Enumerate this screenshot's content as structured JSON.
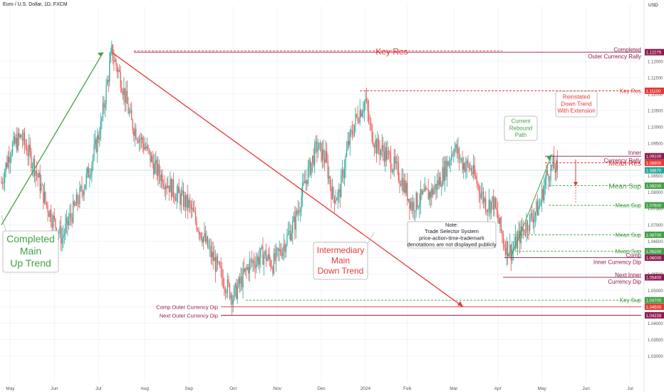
{
  "header": {
    "symbol_title": "Euro / U.S. Dollar, 1D, FXCM",
    "currency": "USD"
  },
  "colors": {
    "up": "#26a69a",
    "down": "#ef5350",
    "green": "#43a047",
    "red": "#e53935",
    "maroon": "#8e1b4f",
    "grid": "#f0f3fa",
    "axis_text": "#555555"
  },
  "chart_data": {
    "type": "candlestick",
    "title": "Euro / U.S. Dollar, 1D, FXCM",
    "ylim": [
      1.022,
      1.137
    ],
    "y_ticks": [
      1.03,
      1.035,
      1.04,
      1.045,
      1.05,
      1.055,
      1.06,
      1.065,
      1.07,
      1.075,
      1.08,
      1.085,
      1.09,
      1.095,
      1.1,
      1.105,
      1.11,
      1.115,
      1.12
    ],
    "x_labels": [
      "May",
      "Jun",
      "Jul",
      "Aug",
      "Sep",
      "Oct",
      "Nov",
      "Dec",
      "2024",
      "Feb",
      "Mar",
      "Apr",
      "May",
      "Jun",
      "Jul"
    ],
    "x_label_idx": [
      8,
      48,
      88,
      130,
      170,
      210,
      250,
      290,
      330,
      368,
      410,
      450,
      490,
      530,
      570
    ],
    "last_price": 1.0867,
    "price_path": [
      [
        0,
        1.083
      ],
      [
        8,
        1.093
      ],
      [
        18,
        1.097
      ],
      [
        30,
        1.088
      ],
      [
        40,
        1.077
      ],
      [
        50,
        1.069
      ],
      [
        55,
        1.066
      ],
      [
        62,
        1.072
      ],
      [
        70,
        1.078
      ],
      [
        80,
        1.087
      ],
      [
        90,
        1.1
      ],
      [
        100,
        1.12275
      ],
      [
        108,
        1.115
      ],
      [
        118,
        1.101
      ],
      [
        130,
        1.094
      ],
      [
        140,
        1.087
      ],
      [
        150,
        1.083
      ],
      [
        160,
        1.079
      ],
      [
        170,
        1.076
      ],
      [
        178,
        1.07
      ],
      [
        190,
        1.061
      ],
      [
        200,
        1.054
      ],
      [
        210,
        1.048
      ],
      [
        216,
        1.052
      ],
      [
        225,
        1.058
      ],
      [
        238,
        1.061
      ],
      [
        246,
        1.058
      ],
      [
        256,
        1.064
      ],
      [
        266,
        1.071
      ],
      [
        276,
        1.084
      ],
      [
        286,
        1.094
      ],
      [
        294,
        1.09
      ],
      [
        300,
        1.079
      ],
      [
        306,
        1.079
      ],
      [
        314,
        1.094
      ],
      [
        322,
        1.103
      ],
      [
        330,
        1.108
      ],
      [
        334,
        1.1
      ],
      [
        340,
        1.094
      ],
      [
        348,
        1.092
      ],
      [
        356,
        1.088
      ],
      [
        364,
        1.083
      ],
      [
        372,
        1.076
      ],
      [
        380,
        1.078
      ],
      [
        390,
        1.08
      ],
      [
        398,
        1.084
      ],
      [
        406,
        1.09
      ],
      [
        410,
        1.094
      ],
      [
        418,
        1.089
      ],
      [
        426,
        1.087
      ],
      [
        432,
        1.082
      ],
      [
        440,
        1.076
      ],
      [
        446,
        1.077
      ],
      [
        450,
        1.072
      ],
      [
        456,
        1.064
      ],
      [
        462,
        1.062
      ],
      [
        466,
        1.064
      ],
      [
        472,
        1.068
      ],
      [
        480,
        1.072
      ],
      [
        488,
        1.076
      ],
      [
        494,
        1.085
      ],
      [
        500,
        1.088
      ],
      [
        504,
        1.0867
      ]
    ],
    "levels": [
      {
        "label": "Key Res",
        "value": 1.1232,
        "color": "#e53935",
        "badge": "",
        "dashed": true
      },
      {
        "label": "Completed Outer Currency Rally",
        "value": 1.1228,
        "color": "#8e1b4f",
        "badge": "1.12275",
        "dashed": false
      },
      {
        "label": "Key Res",
        "value": 1.111,
        "color": "#e53935",
        "badge": "1.11100",
        "dashed": true
      },
      {
        "label": "Inner Currency Rally",
        "value": 1.091,
        "color": "#8e1b4f",
        "badge": "1.09100",
        "dashed": false
      },
      {
        "label": "Mean Res",
        "value": 1.089,
        "color": "#e53935",
        "badge": "1.08900",
        "dashed": true
      },
      {
        "label": "",
        "value": 1.0867,
        "color": "#26a69a",
        "badge": "1.08670",
        "dashed": false
      },
      {
        "label": "Mean Sup",
        "value": 1.082,
        "color": "#43a047",
        "badge": "1.08200",
        "dashed": true
      },
      {
        "label": "Mean Sup",
        "value": 1.076,
        "color": "#43a047",
        "badge": "1.07600",
        "dashed": true
      },
      {
        "label": "Mean Sup",
        "value": 1.067,
        "color": "#43a047",
        "badge": "1.06700",
        "dashed": true
      },
      {
        "label": "Mean Sup",
        "value": 1.062,
        "color": "#43a047",
        "badge": "1.06200",
        "dashed": true
      },
      {
        "label": "Comp Inner Currency Dip",
        "value": 1.06,
        "color": "#8e1b4f",
        "badge": "1.06000",
        "dashed": false
      },
      {
        "label": "Next Inner Currency Dip",
        "value": 1.054,
        "color": "#8e1b4f",
        "badge": "1.05400",
        "dashed": false
      },
      {
        "label": "Key Sup",
        "value": 1.047,
        "color": "#43a047",
        "badge": "1.04700",
        "dashed": true
      },
      {
        "label": "Comp Outer Currency Dip",
        "value": 1.045,
        "color": "#e53935",
        "badge": "1.04500",
        "dashed": false
      },
      {
        "label": "Next Outer Currency Dip",
        "value": 1.04239,
        "color": "#8e1b4f",
        "badge": "1.04239",
        "dashed": false
      }
    ],
    "annotations": [
      {
        "text": "Completed Main Up Trend",
        "color": "#43a047"
      },
      {
        "text": "Intermediary Main Down Trend",
        "color": "#e53935"
      },
      {
        "text": "Current Rebound Path",
        "color": "#43a047"
      },
      {
        "text": "Reinstated Down Trend With Extension",
        "color": "#e53935"
      },
      {
        "text": "Note: Trade Selector System price-action-time-trademark denotations are not displayed publicly",
        "color": "#131722"
      }
    ]
  },
  "labels": {
    "key_res_top": "Key Res",
    "completed_1": "Completed",
    "completed_2": "Outer Currency Rally",
    "key_res": "Key Res",
    "inner_1": "Inner",
    "inner_2": "Currency Rally",
    "mean_res": "Mean Res",
    "mean_sup_big": "Mean Sup",
    "mean_sup": "Mean Sup",
    "comp_1": "Comp",
    "comp_2": "Inner Currency Dip",
    "next_inner_1": "Next Inner",
    "next_inner_2": "Currency Dip",
    "key_sup": "Key Sup",
    "comp_outer": "Comp Outer Currency Dip",
    "next_outer": "Next Outer Currency Dip",
    "up_trend": [
      "Completed",
      "Main",
      "Up Trend"
    ],
    "down_trend": [
      "Intermediary",
      "Main",
      "Down Trend"
    ],
    "rebound": [
      "Current",
      "Rebound",
      "Path"
    ],
    "reinstated": [
      "Reinstated",
      "Down Trend",
      "With Extension"
    ],
    "note": [
      "Note:",
      "Trade Selector System",
      "price-action-time-trademark",
      "denotations are not displayed publicly"
    ]
  }
}
